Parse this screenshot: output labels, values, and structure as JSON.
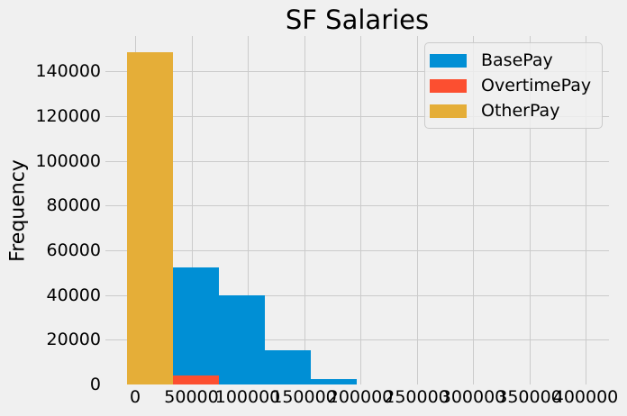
{
  "colors": {
    "background": "#f0f0f0",
    "grid": "#cbcbcb",
    "text": "#000000",
    "legend_border": "#cbcbcb"
  },
  "chart_data": {
    "type": "histogram",
    "title": "SF Salaries",
    "xlabel": "",
    "ylabel": "Frequency",
    "bin_edges": [
      -7058,
      33666,
      74390,
      115115,
      155839,
      196563,
      237287,
      278011,
      318736,
      359460,
      400184
    ],
    "series": [
      {
        "name": "BasePay",
        "color": "#008fd5",
        "counts": [
          37000,
          52500,
          40000,
          15500,
          2500,
          0,
          0,
          0,
          0,
          0
        ]
      },
      {
        "name": "OvertimePay",
        "color": "#fc4f30",
        "counts": [
          143000,
          4000,
          0,
          0,
          0,
          0,
          0,
          0,
          0,
          0
        ]
      },
      {
        "name": "OtherPay",
        "color": "#e5ae38",
        "counts": [
          148600,
          0,
          0,
          0,
          0,
          0,
          0,
          0,
          0,
          0
        ]
      }
    ],
    "overlay_mode": "overlapping bars drawn in series order (BasePay behind, OtherPay on top)",
    "x_ticks": [
      0,
      50000,
      100000,
      150000,
      200000,
      250000,
      300000,
      350000,
      400000
    ],
    "y_ticks": [
      0,
      20000,
      40000,
      60000,
      80000,
      100000,
      120000,
      140000
    ],
    "xlim": [
      -26400,
      420800
    ],
    "ylim": [
      0,
      155800
    ],
    "grid": true,
    "legend_position": "upper right"
  }
}
